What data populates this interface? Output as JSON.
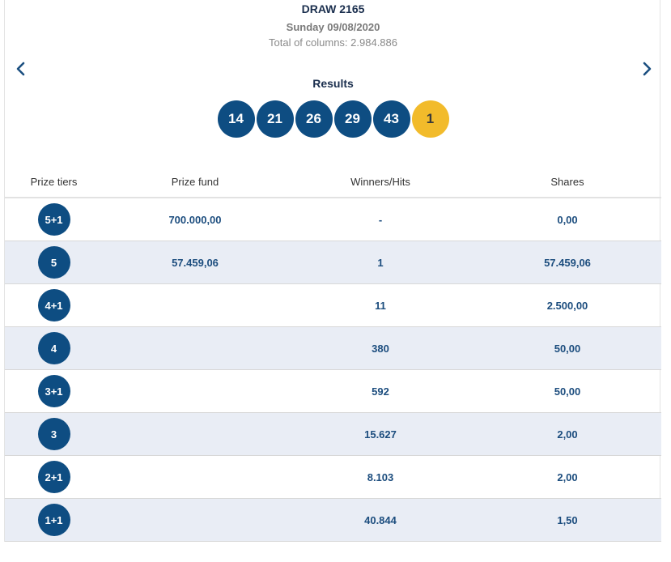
{
  "draw": {
    "title": "DRAW 2165",
    "date": "Sunday 09/08/2020",
    "columns": "Total of columns: 2.984.886"
  },
  "nav": {
    "prev_icon": "chevron-left-icon",
    "next_icon": "chevron-right-icon"
  },
  "results": {
    "label": "Results",
    "numbers": [
      "14",
      "21",
      "26",
      "29",
      "43"
    ],
    "bonus": "1"
  },
  "colors": {
    "ball": "#0e4d82",
    "bonus": "#f2bb2b",
    "row_alt": "#e9edf5",
    "value_text": "#1c4d7e"
  },
  "table": {
    "headers": [
      "Prize tiers",
      "Prize fund",
      "Winners/Hits",
      "Shares"
    ],
    "rows": [
      {
        "tier": "5+1",
        "fund": "700.000,00",
        "winners": "-",
        "shares": "0,00"
      },
      {
        "tier": "5",
        "fund": "57.459,06",
        "winners": "1",
        "shares": "57.459,06"
      },
      {
        "tier": "4+1",
        "fund": "",
        "winners": "11",
        "shares": "2.500,00"
      },
      {
        "tier": "4",
        "fund": "",
        "winners": "380",
        "shares": "50,00"
      },
      {
        "tier": "3+1",
        "fund": "",
        "winners": "592",
        "shares": "50,00"
      },
      {
        "tier": "3",
        "fund": "",
        "winners": "15.627",
        "shares": "2,00"
      },
      {
        "tier": "2+1",
        "fund": "",
        "winners": "8.103",
        "shares": "2,00"
      },
      {
        "tier": "1+1",
        "fund": "",
        "winners": "40.844",
        "shares": "1,50"
      }
    ]
  }
}
